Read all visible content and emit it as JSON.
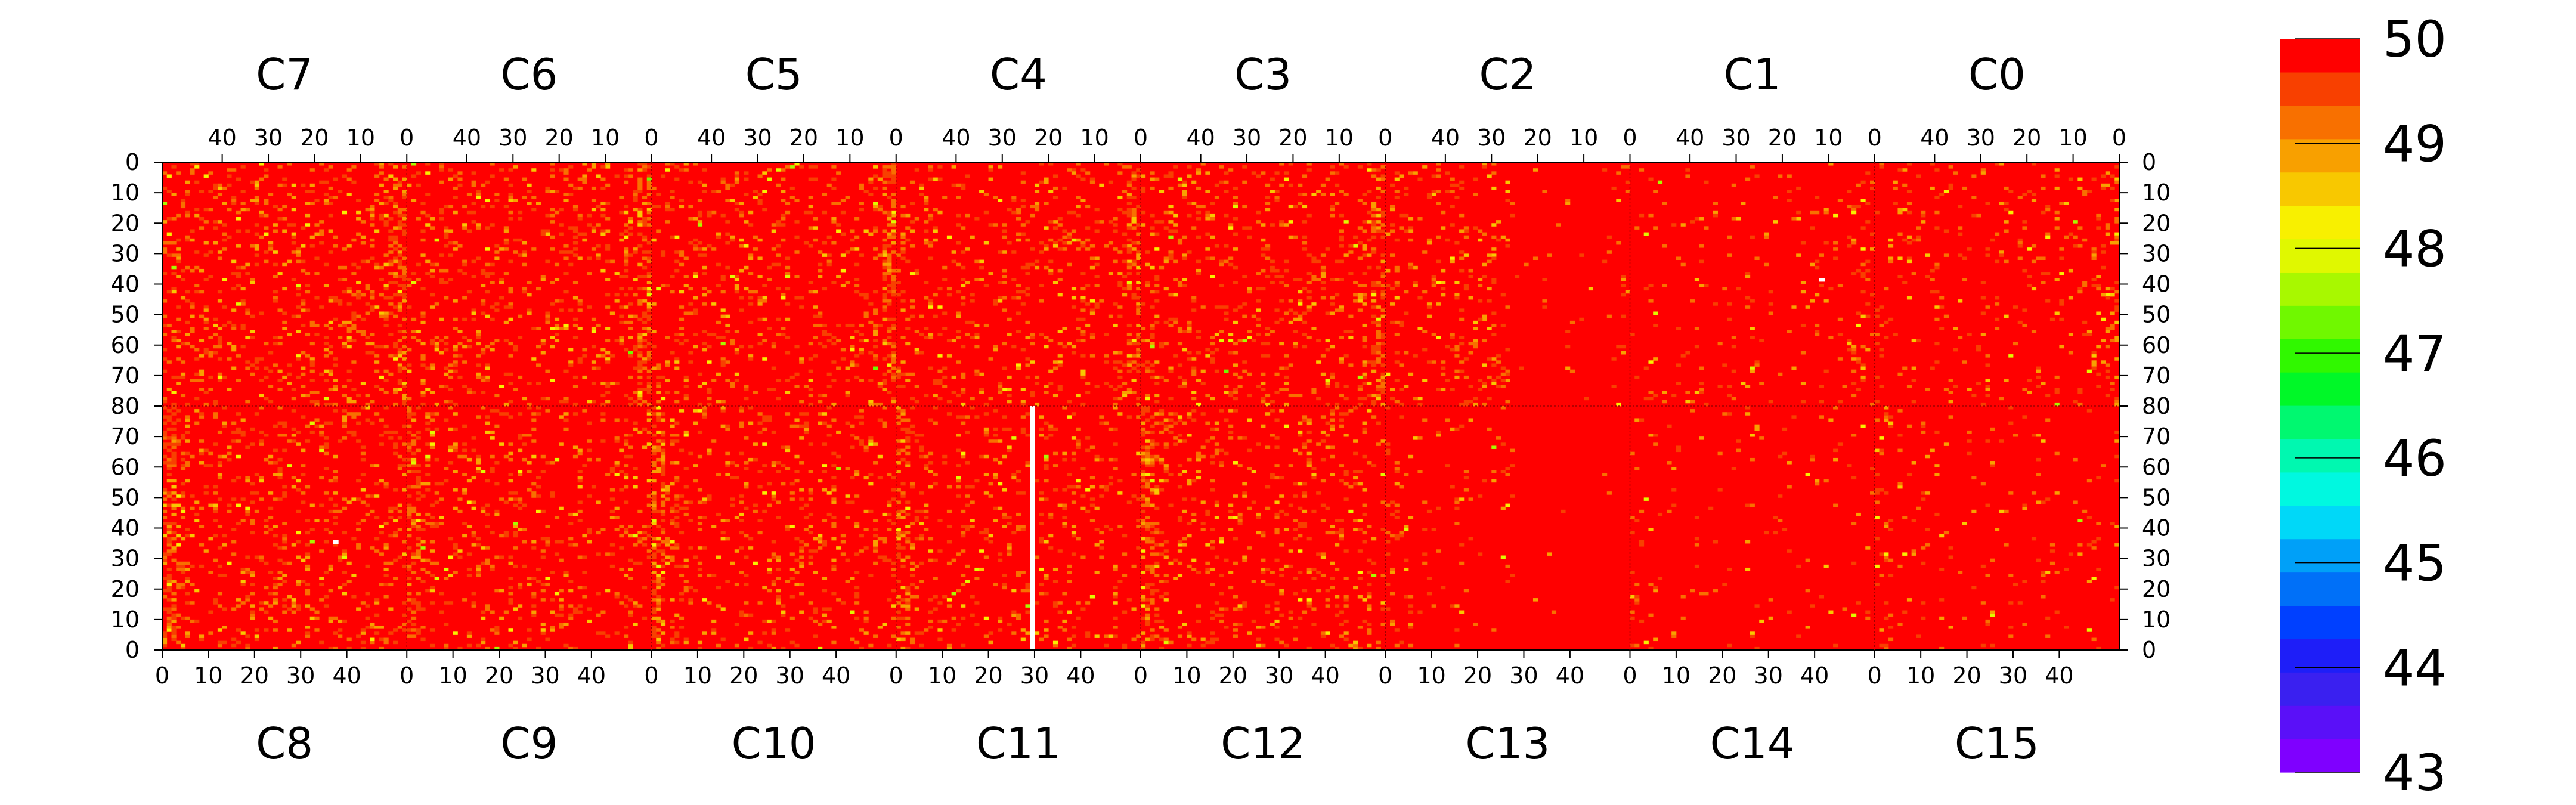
{
  "chart_data": {
    "type": "heatmap",
    "top_chips": [
      "C7",
      "C6",
      "C5",
      "C4",
      "C3",
      "C2",
      "C1",
      "C0"
    ],
    "bottom_chips": [
      "C8",
      "C9",
      "C10",
      "C11",
      "C12",
      "C13",
      "C14",
      "C15"
    ],
    "columns_per_chip": 53,
    "rows_per_half": 80,
    "top_x_ticks": [
      "40",
      "30",
      "20",
      "10",
      "0"
    ],
    "bottom_x_ticks": [
      "0",
      "10",
      "20",
      "30",
      "40"
    ],
    "y_ticks_top_half": [
      "0",
      "10",
      "20",
      "30",
      "40",
      "50",
      "60",
      "70",
      "80"
    ],
    "y_ticks_bottom_half": [
      "70",
      "60",
      "50",
      "40",
      "30",
      "20",
      "10",
      "0"
    ],
    "zlim": [
      43,
      50
    ],
    "colorbar_ticks": [
      "50",
      "49",
      "48",
      "47",
      "46",
      "45",
      "44",
      "43"
    ],
    "dominant_value": 50,
    "palette": [
      "#7f00ff",
      "#5a10f8",
      "#3a20f0",
      "#1e1ef8",
      "#0040ff",
      "#0070f8",
      "#00a0f8",
      "#00d8f8",
      "#00f8e0",
      "#00f8b0",
      "#00f870",
      "#00f828",
      "#30f800",
      "#70f800",
      "#a8f800",
      "#e0f800",
      "#f8f000",
      "#f8c800",
      "#f8a000",
      "#f87000",
      "#f84000",
      "#ff0000"
    ],
    "noise_level_by_chip": [
      0.14,
      0.14,
      0.12,
      0.12,
      0.13,
      0.12,
      0.04,
      0.07,
      0.14,
      0.12,
      0.12,
      0.1,
      0.12,
      0.03,
      0.03,
      0.03
    ],
    "empty_cells": [
      {
        "chip": "C11",
        "col": 29,
        "row_from": 0,
        "row_to": 79
      },
      {
        "chip": "C8",
        "col": 37,
        "row": 35
      },
      {
        "chip": "C1",
        "col": 11,
        "row": 38
      }
    ]
  }
}
